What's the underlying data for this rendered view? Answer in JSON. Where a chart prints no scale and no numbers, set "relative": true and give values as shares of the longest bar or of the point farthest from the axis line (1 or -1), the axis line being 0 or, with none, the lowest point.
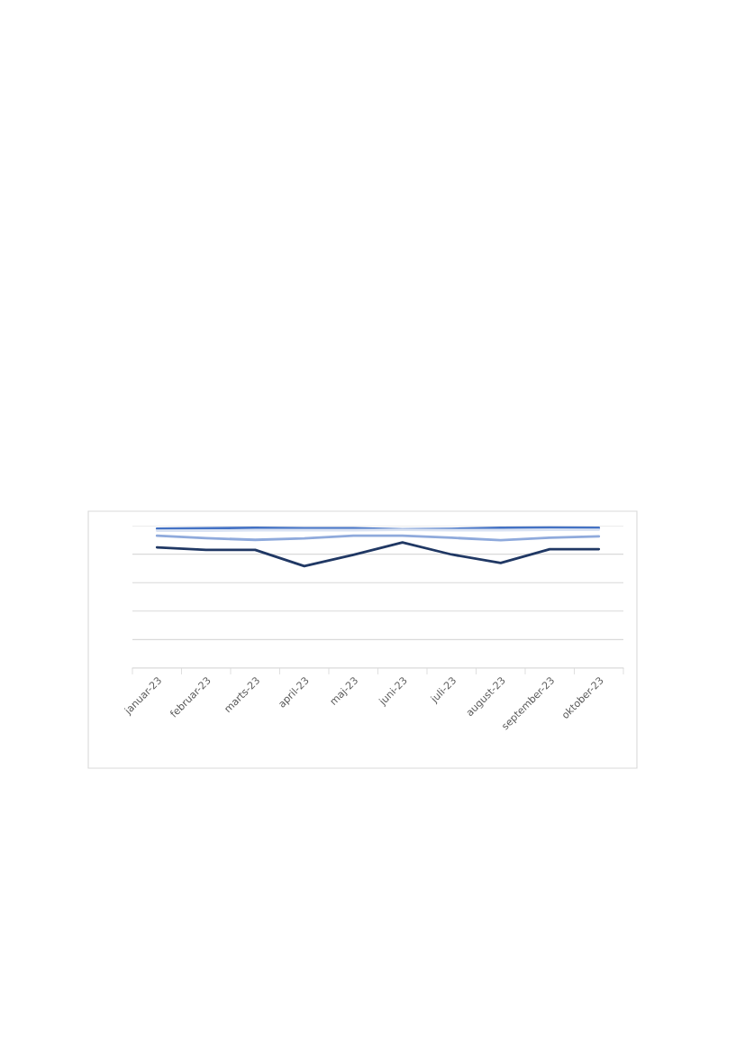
{
  "chart_data": {
    "type": "line",
    "relative": true,
    "grid": "y",
    "categories": [
      "januar-23",
      "februar-23",
      "marts-23",
      "april-23",
      "maj-23",
      "juni-23",
      "juli-23",
      "august-23",
      "september-23",
      "oktober-23"
    ],
    "series": [
      {
        "color": "#4472c4",
        "values": [
          0.992,
          0.995,
          0.997,
          0.995,
          0.995,
          0.987,
          0.99,
          0.997,
          1,
          0.997
        ]
      },
      {
        "color": "#203864",
        "values": [
          0.859,
          0.841,
          0.841,
          0.725,
          0.806,
          0.894,
          0.808,
          0.748,
          0.846,
          0.846
        ]
      },
      {
        "color": "#dae3f3",
        "values": [
          0.977,
          0.977,
          0.981,
          0.981,
          0.981,
          0.984,
          0.981,
          0.981,
          0.984,
          0.984
        ]
      },
      {
        "color": "#8faadc",
        "values": [
          0.942,
          0.924,
          0.912,
          0.922,
          0.942,
          0.942,
          0.927,
          0.909,
          0.927,
          0.937
        ]
      }
    ]
  }
}
